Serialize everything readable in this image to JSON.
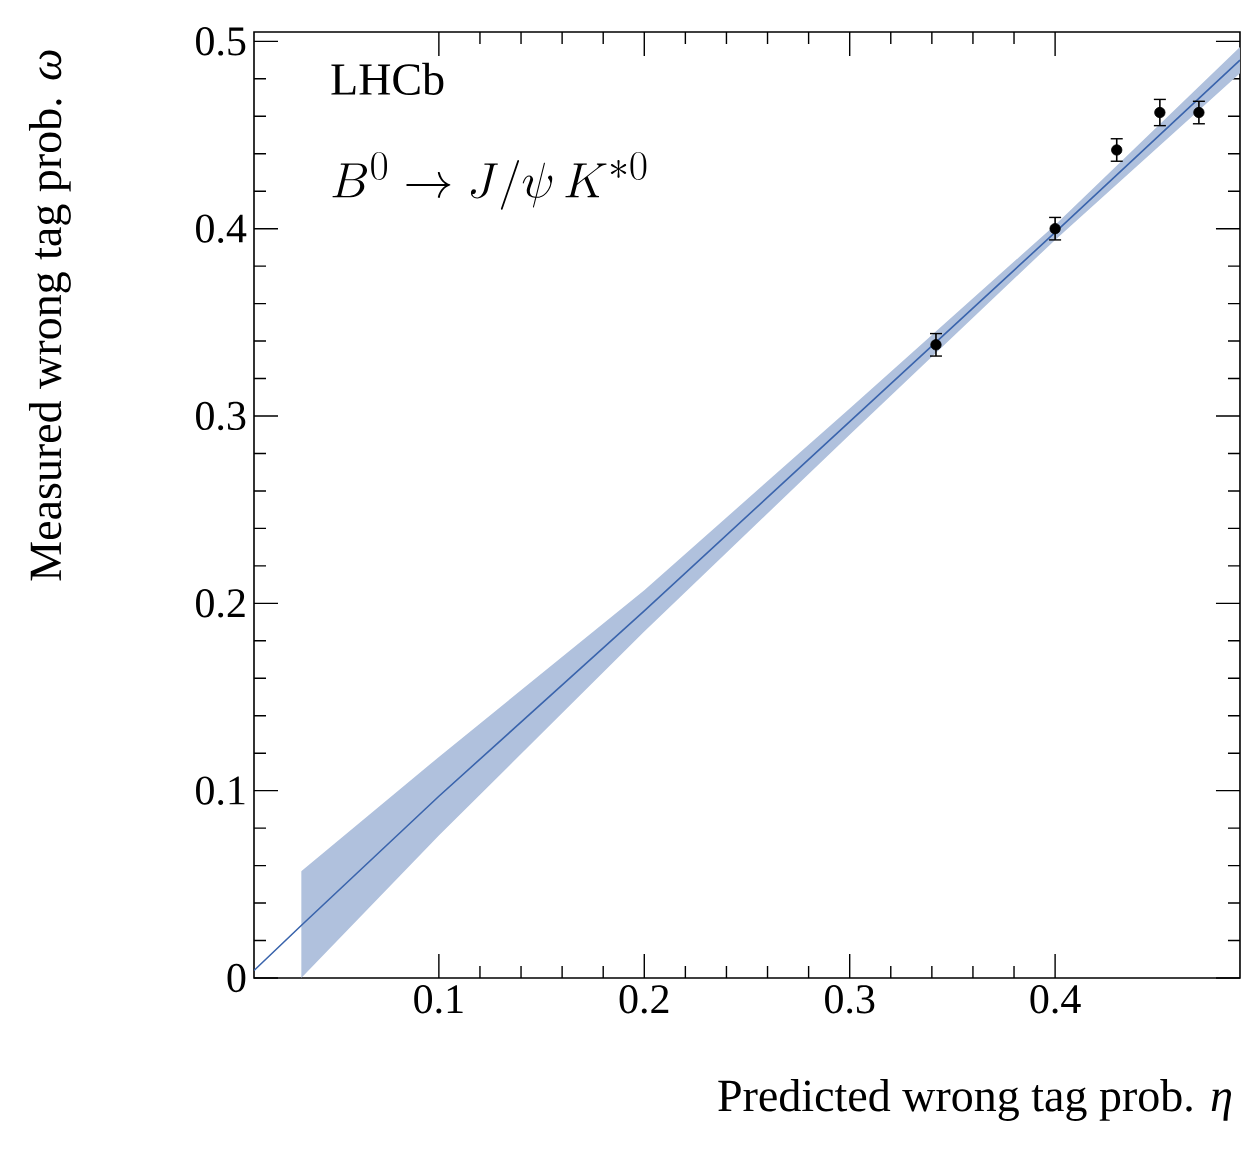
{
  "chart_data": {
    "type": "scatter",
    "xlabel": "Predicted wrong tag prob. *η*",
    "ylabel": "Measured wrong tag prob. *ω*",
    "annotations": [
      "LHCb",
      "B^0\\to J/\\psi\\, K^{*0}"
    ],
    "series": [
      {
        "type": "line",
        "color": "#3a64ac",
        "x": [
          0.01,
          0.033,
          0.1,
          0.2,
          0.3,
          0.4,
          0.49
        ],
        "values": [
          0.004,
          0.028,
          0.097,
          0.196,
          0.297,
          0.398,
          0.49
        ],
        "lower": [
          null,
          0.0,
          0.076,
          0.185,
          0.29,
          0.394,
          0.483
        ],
        "upper": [
          null,
          0.057,
          0.118,
          0.207,
          0.304,
          0.402,
          0.497
        ],
        "marker": "none"
      },
      {
        "color": "#000000",
        "x": [
          0.342,
          0.4,
          0.43,
          0.451,
          0.47
        ],
        "values": [
          0.338,
          0.4,
          0.442,
          0.462,
          0.462
        ],
        "errors": [
          0.006,
          0.006,
          0.006,
          0.007,
          0.006
        ],
        "marker": "circle"
      }
    ],
    "xlim": [
      0.01,
      0.49
    ],
    "ylim": [
      0,
      0.505
    ],
    "xticks": [
      0.1,
      0.2,
      0.3,
      0.4
    ],
    "yticks": [
      0,
      0.1,
      0.2,
      0.3,
      0.4,
      0.5
    ]
  }
}
